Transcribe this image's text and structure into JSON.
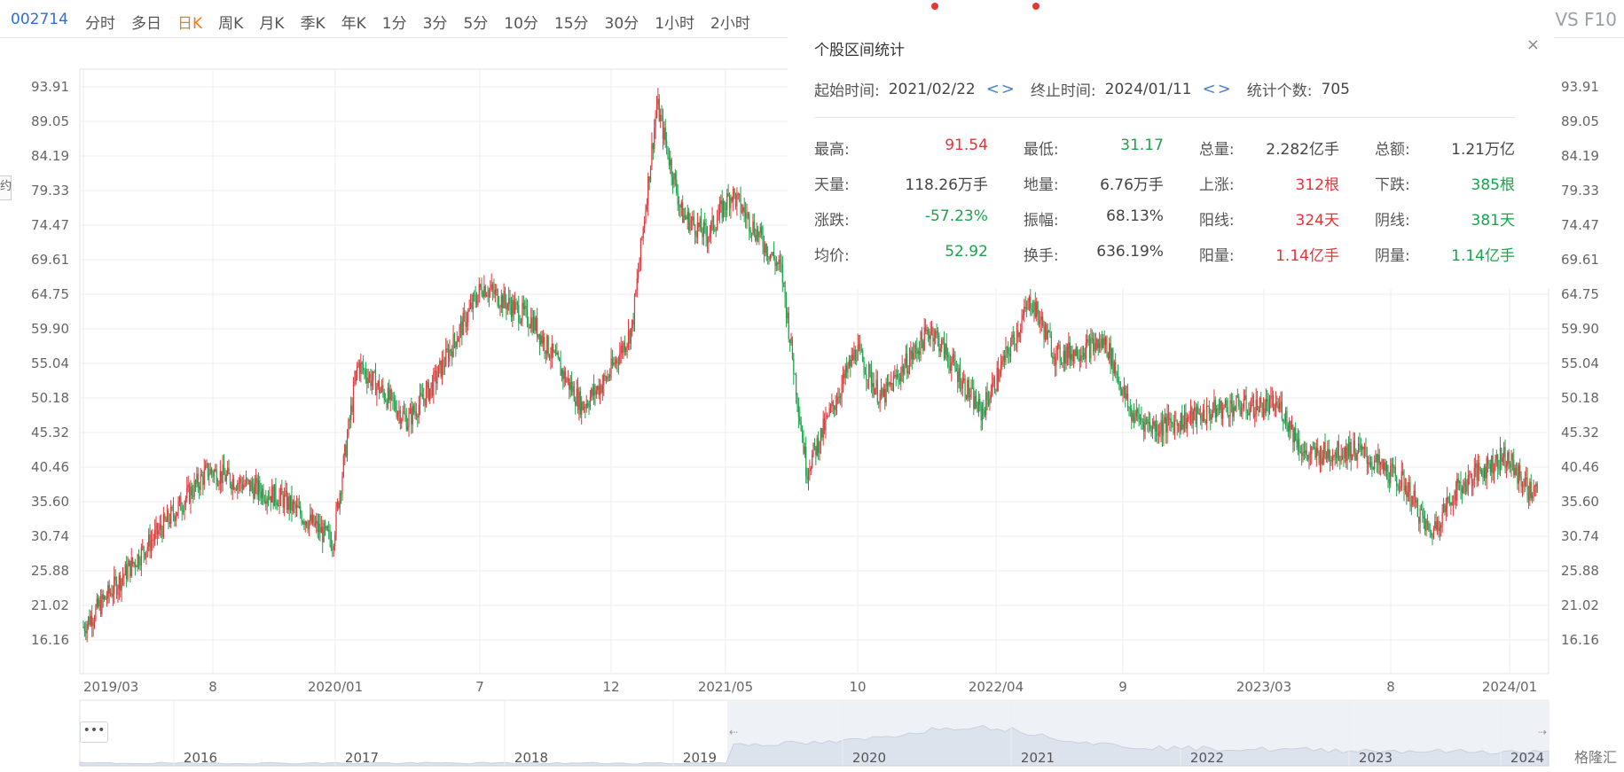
{
  "stock_code": "002714",
  "tabs": [
    "分时",
    "多日",
    "日K",
    "周K",
    "月K",
    "季K",
    "年K",
    "1分",
    "3分",
    "5分",
    "10分",
    "15分",
    "30分",
    "1小时",
    "2小时"
  ],
  "active_tab": "日K",
  "top_right_label": "VS F10",
  "popup": {
    "title": "个股区间统计",
    "start_label": "起始时间:",
    "start_value": "2021/02/22",
    "end_label": "终止时间:",
    "end_value": "2024/01/11",
    "count_label": "统计个数:",
    "count_value": "705",
    "stats": [
      [
        {
          "k": "最高:",
          "v": "91.54",
          "color": "red"
        },
        {
          "k": "最低:",
          "v": "31.17",
          "color": "green"
        },
        {
          "k": "总量:",
          "v": "2.282亿手",
          "color": "dark"
        },
        {
          "k": "总额:",
          "v": "1.21万亿",
          "color": "dark"
        }
      ],
      [
        {
          "k": "天量:",
          "v": "118.26万手",
          "color": "dark"
        },
        {
          "k": "地量:",
          "v": "6.76万手",
          "color": "dark"
        },
        {
          "k": "上涨:",
          "v": "312根",
          "color": "red"
        },
        {
          "k": "下跌:",
          "v": "385根",
          "color": "green"
        }
      ],
      [
        {
          "k": "涨跌:",
          "v": "-57.23%",
          "color": "green"
        },
        {
          "k": "振幅:",
          "v": "68.13%",
          "color": "dark"
        },
        {
          "k": "阳线:",
          "v": "324天",
          "color": "red"
        },
        {
          "k": "阴线:",
          "v": "381天",
          "color": "green"
        }
      ],
      [
        {
          "k": "均价:",
          "v": "52.92",
          "color": "green"
        },
        {
          "k": "换手:",
          "v": "636.19%",
          "color": "dark"
        },
        {
          "k": "阳量:",
          "v": "1.14亿手",
          "color": "red"
        },
        {
          "k": "阴量:",
          "v": "1.14亿手",
          "color": "green"
        }
      ]
    ]
  },
  "chart_data": {
    "type": "candlestick",
    "y_ticks": [
      "93.91",
      "89.05",
      "84.19",
      "79.33",
      "74.47",
      "69.61",
      "64.75",
      "59.90",
      "55.04",
      "50.18",
      "45.32",
      "40.46",
      "35.60",
      "30.74",
      "25.88",
      "21.02",
      "16.16"
    ],
    "ylim": [
      16.16,
      93.91
    ],
    "x_ticks": [
      "2019/03",
      "8",
      "2020/01",
      "7",
      "12",
      "2021/05",
      "10",
      "2022/04",
      "9",
      "2023/03",
      "8",
      "2024/01"
    ],
    "x_range": [
      "2019/03",
      "2024/01"
    ],
    "price_series": {
      "x": [
        "2019/03",
        "2019/05",
        "2019/08",
        "2019/11",
        "2020/01",
        "2020/02",
        "2020/04",
        "2020/05",
        "2020/07",
        "2020/09",
        "2020/11",
        "2020/12",
        "2021/01",
        "2021/02",
        "2021/03",
        "2021/04",
        "2021/05",
        "2021/07",
        "2021/08",
        "2021/10",
        "2021/11",
        "2022/01",
        "2022/03",
        "2022/05",
        "2022/06",
        "2022/08",
        "2022/09",
        "2022/10",
        "2023/01",
        "2023/03",
        "2023/04",
        "2023/06",
        "2023/08",
        "2023/09",
        "2023/10",
        "2023/11",
        "2023/12",
        "2024/01"
      ],
      "close": [
        18,
        27,
        40,
        36,
        30,
        55,
        47,
        52,
        66,
        61,
        49,
        53,
        60,
        91.5,
        76,
        73,
        79,
        68,
        40,
        57,
        50,
        60,
        48,
        64,
        56,
        58,
        48,
        46,
        49,
        49,
        42,
        43,
        38,
        31,
        37,
        40,
        42,
        37
      ]
    },
    "navigator": {
      "year_labels": [
        "2016",
        "2017",
        "2018",
        "2019",
        "2020",
        "2021",
        "2022",
        "2023",
        "2024"
      ]
    },
    "watermark": "格隆汇"
  },
  "colors": {
    "up": "#e8323a",
    "down": "#1aa34a",
    "grid": "#eeeeee",
    "axis": "#666666",
    "accent": "#f07b19",
    "code": "#2a6fdb"
  }
}
